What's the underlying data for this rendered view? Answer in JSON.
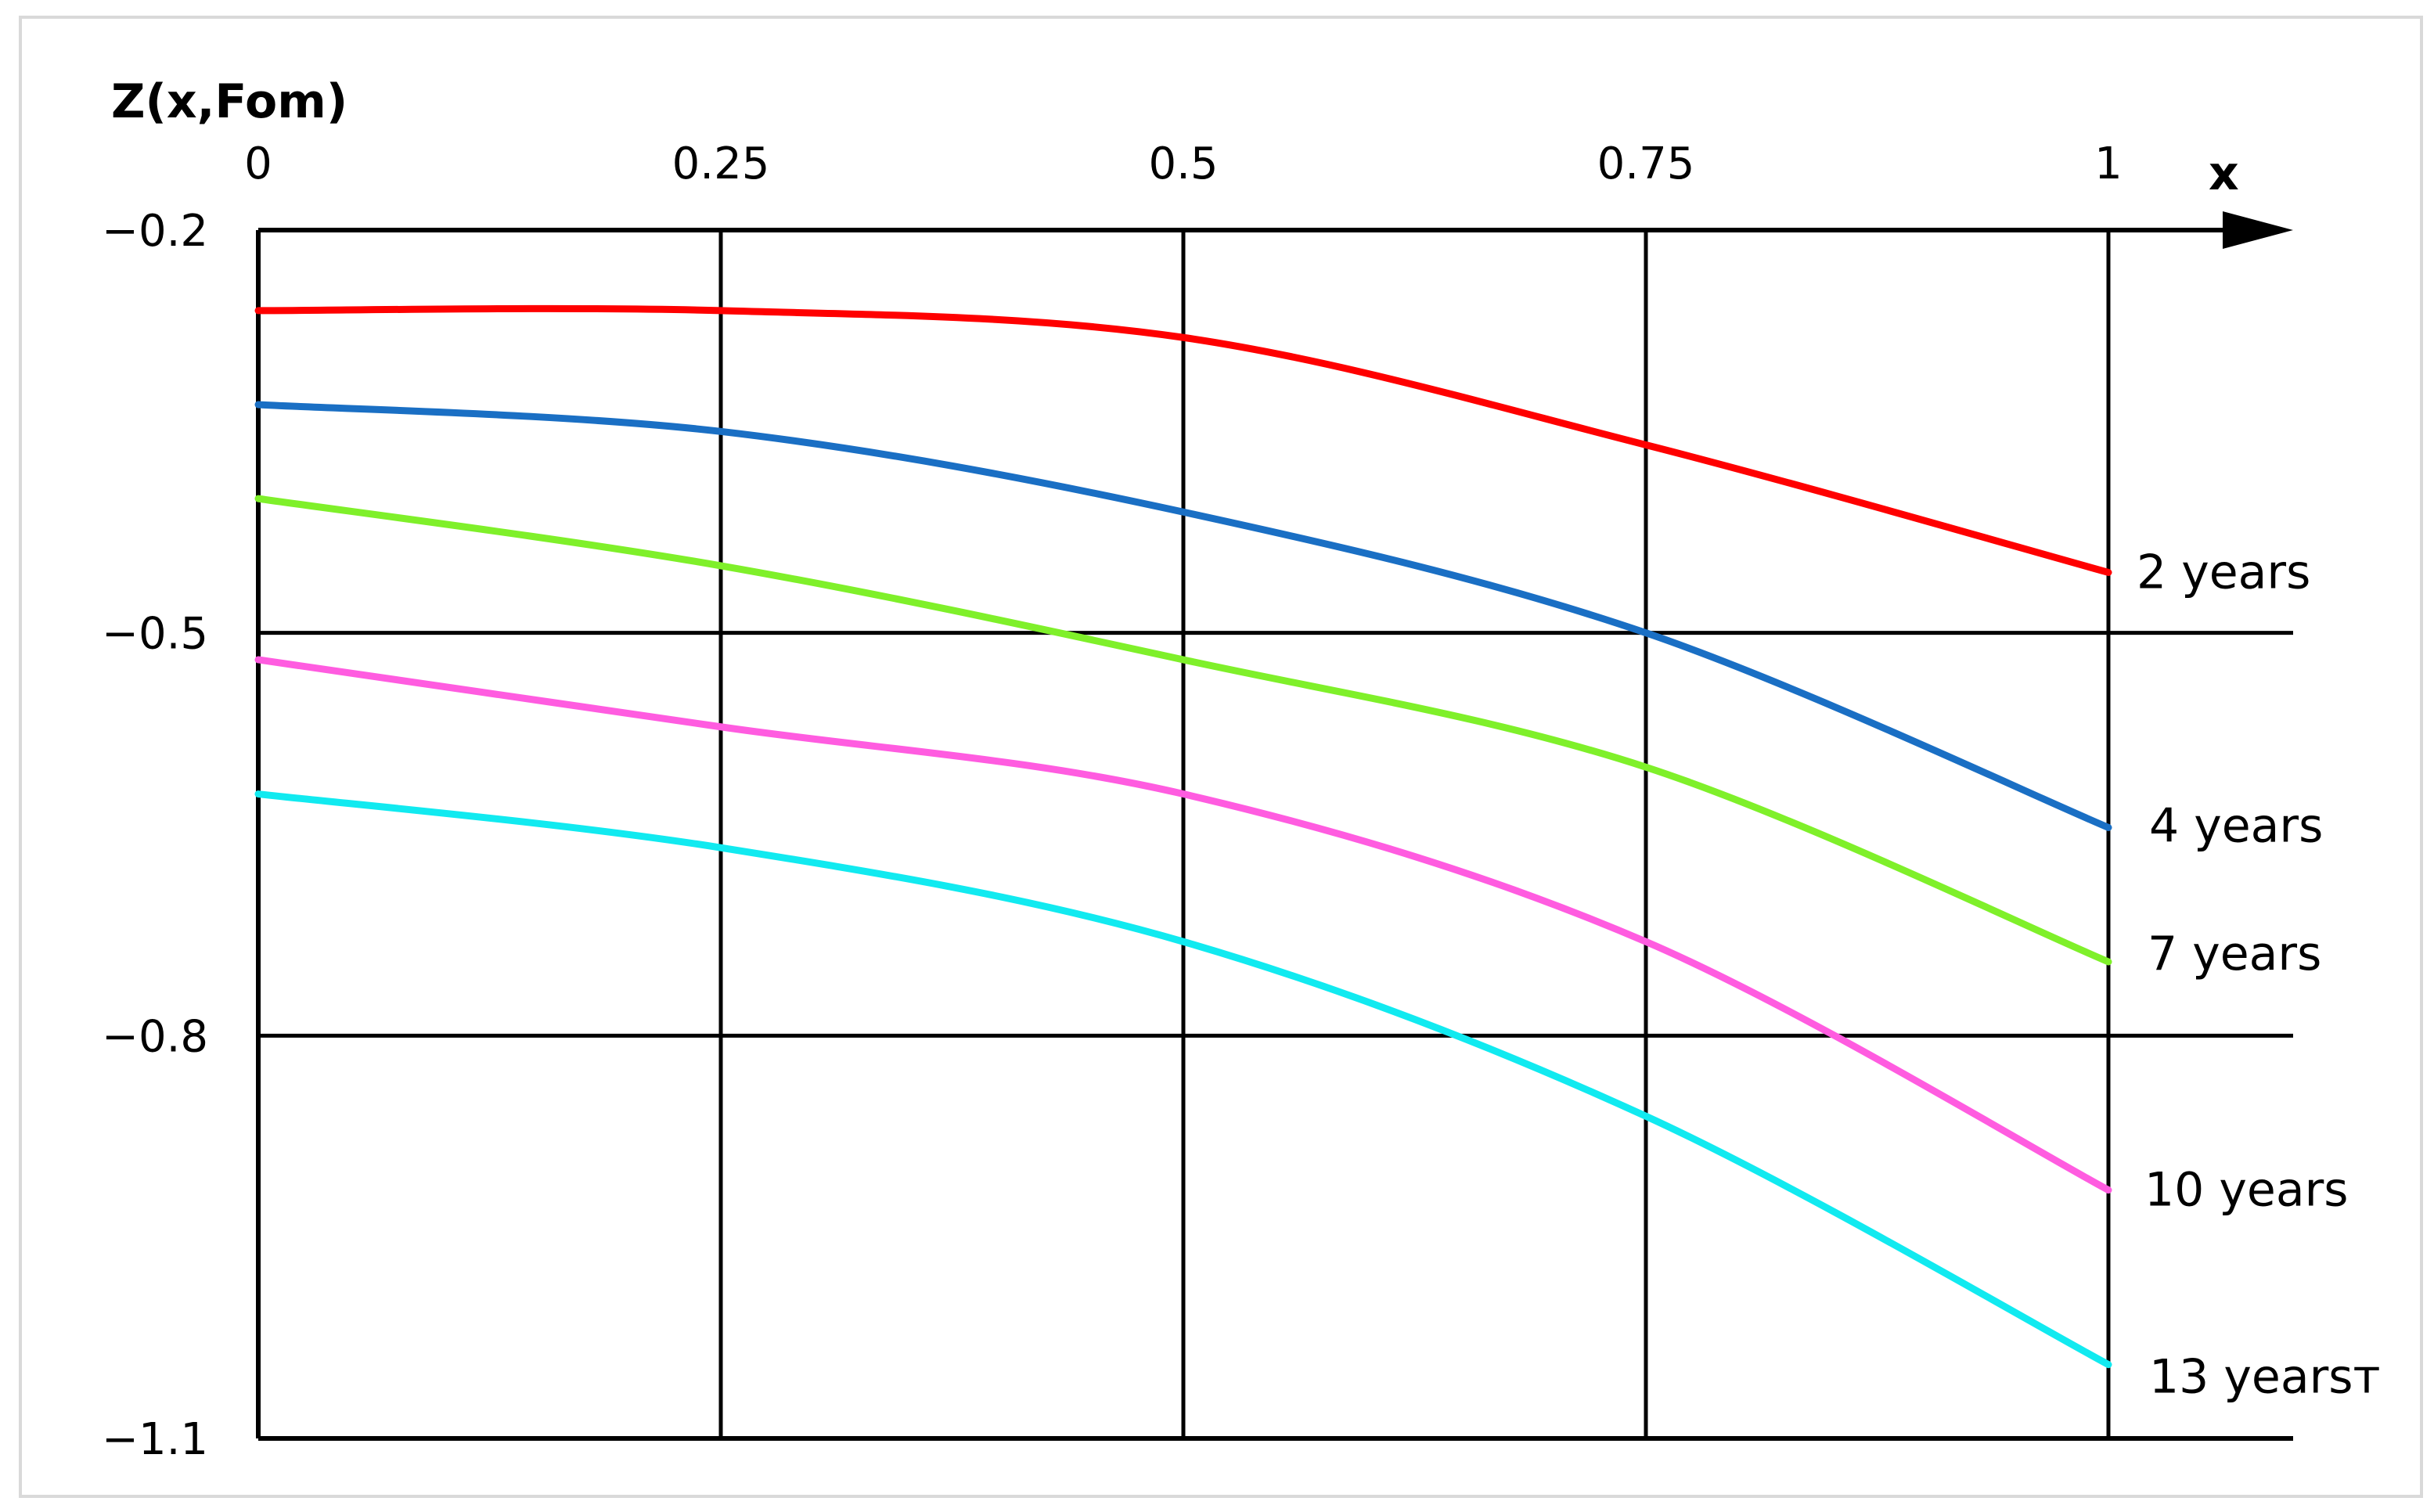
{
  "chart_data": {
    "type": "line",
    "title": "",
    "xlabel": "x",
    "ylabel": "Z(x,Fom)",
    "xlim": [
      0,
      1
    ],
    "ylim": [
      -1.1,
      -0.2
    ],
    "x_ticks": [
      "0",
      "0.25",
      "0.5",
      "0.75",
      "1"
    ],
    "y_ticks": [
      "−0.2",
      "−0.5",
      "−0.8",
      "−1.1"
    ],
    "grid": true,
    "legend": "none; series labelled at right end of each line",
    "x": [
      0,
      0.25,
      0.5,
      0.75,
      1
    ],
    "series": [
      {
        "name": "2 years",
        "color": "#ff0000",
        "values": [
          -0.26,
          -0.26,
          -0.28,
          -0.36,
          -0.455
        ]
      },
      {
        "name": "4 years",
        "color": "#1a6fc4",
        "values": [
          -0.33,
          -0.35,
          -0.41,
          -0.5,
          -0.645
        ]
      },
      {
        "name": "7 years",
        "color": "#7ff02a",
        "values": [
          -0.4,
          -0.45,
          -0.52,
          -0.6,
          -0.745
        ]
      },
      {
        "name": "10 years",
        "color": "#ff5ce0",
        "values": [
          -0.52,
          -0.57,
          -0.62,
          -0.73,
          -0.915
        ]
      },
      {
        "name": "13 yearsт",
        "color": "#11eaf0",
        "values": [
          -0.62,
          -0.66,
          -0.73,
          -0.86,
          -1.045
        ]
      }
    ]
  }
}
